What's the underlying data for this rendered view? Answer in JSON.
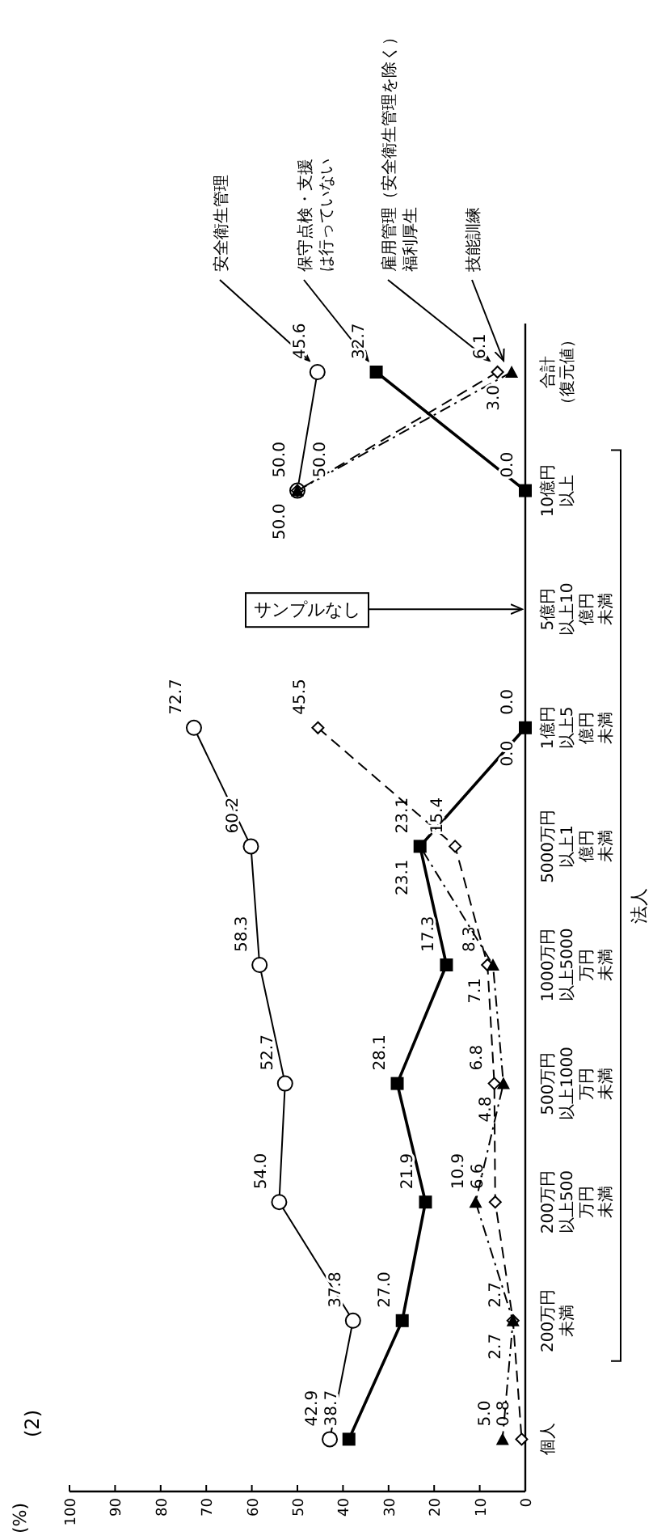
{
  "chart_data": {
    "type": "line",
    "orientation": "horizontal",
    "title": "(2)",
    "ylabel": "(%)",
    "categories": [
      "合計（復元値）",
      "10億円以上",
      "5億円以上10億円未満",
      "1億円以上5億円未満",
      "5000万円以上1億円未満",
      "1000万円以上5000万円未満",
      "500万円以上1000万円未満",
      "200万円以上500万円未満",
      "200万円未満",
      "個人"
    ],
    "series": [
      {
        "name": "安全衛生管理",
        "color": "#000000",
        "marker": "circle",
        "line_style": "solid",
        "values": [
          45.6,
          50.0,
          null,
          72.7,
          60.2,
          58.3,
          52.7,
          54.0,
          37.8,
          42.9
        ],
        "value_labels": [
          "45.6",
          "50.0",
          null,
          "72.7",
          "60.2",
          "58.3",
          "52.7",
          "54.0",
          "37.8",
          "42.9"
        ]
      },
      {
        "name": "保守点検・支援は行っていない",
        "color": "#000000",
        "marker": "square",
        "line_style": "solid",
        "values": [
          32.7,
          0.0,
          null,
          0.0,
          23.1,
          17.3,
          28.1,
          21.9,
          27.0,
          38.7
        ],
        "value_labels": [
          "32.7",
          "0.0",
          null,
          "0.0",
          "23.1",
          "17.3",
          "28.1",
          "21.9",
          "27.0",
          "38.7"
        ]
      },
      {
        "name": "雇用管理（安全衛生管理を除く）福利厚生",
        "color": "#000000",
        "marker": "diamond",
        "line_style": "dashed",
        "values": [
          6.1,
          50.0,
          null,
          45.5,
          15.4,
          8.3,
          6.8,
          6.6,
          2.7,
          0.8
        ],
        "value_labels": [
          "6.1",
          "50.0",
          null,
          "45.5",
          "15.4",
          "8.3",
          "6.8",
          "6.6",
          "2.7",
          "0.8"
        ]
      },
      {
        "name": "技能訓練",
        "color": "#000000",
        "marker": "triangle",
        "line_style": "dotted",
        "values": [
          3.0,
          50.0,
          null,
          0.0,
          23.1,
          7.1,
          4.8,
          10.9,
          2.7,
          5.0
        ],
        "value_labels": [
          "3.0",
          "50.0",
          null,
          "0.0",
          "23.1",
          "7.1",
          "4.8",
          "10.9",
          "2.7",
          "5.0"
        ]
      }
    ],
    "xlim": [
      100,
      0
    ],
    "xticks": [
      0,
      10,
      20,
      30,
      40,
      50,
      60,
      70,
      80,
      90,
      100
    ],
    "legend": "top",
    "annotations": [
      "法人",
      "サンプルなし"
    ]
  }
}
